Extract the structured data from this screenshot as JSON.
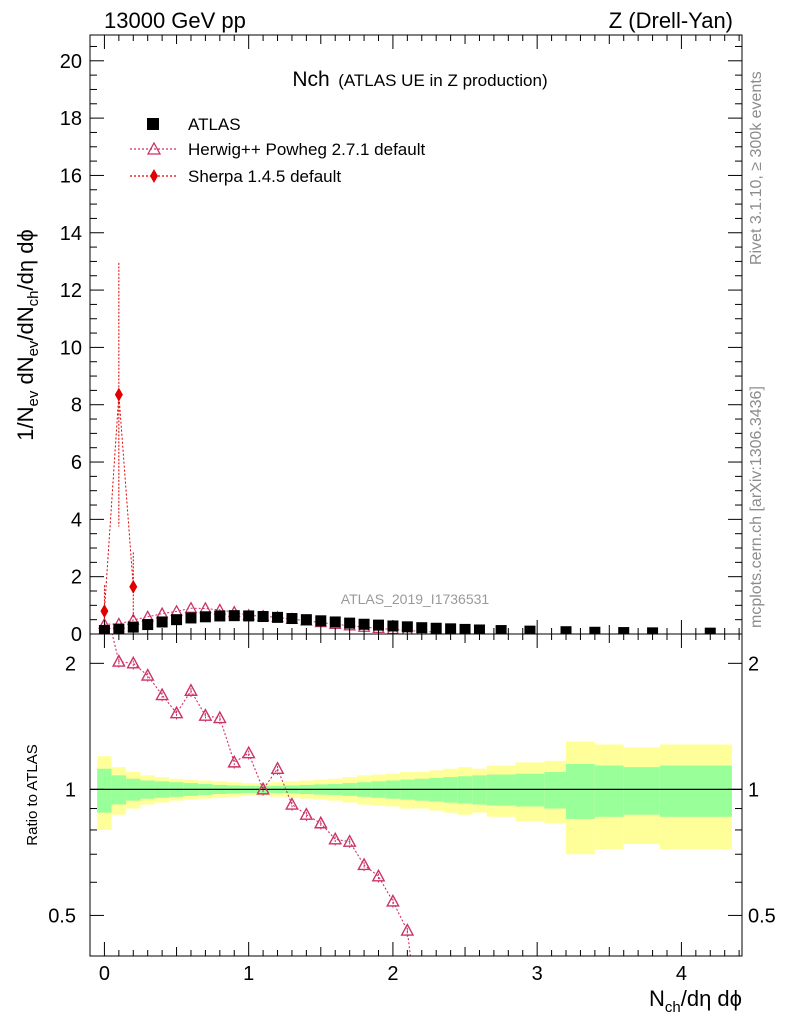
{
  "chart_data": {
    "type": "scatter",
    "header": {
      "energy": "13000 GeV pp",
      "process": "Z (Drell-Yan)"
    },
    "title": {
      "main": "Nch",
      "sub": "(ATLAS UE in Z production)"
    },
    "xlabel": {
      "base": "N",
      "sub": "ch",
      "rest": "/dη dϕ"
    },
    "ylabel": {
      "p1": "1/N",
      "s1": "ev",
      "p2": " dN",
      "s2": "ev",
      "p3": "/dN",
      "s3": "ch",
      "p4": "/dη dϕ"
    },
    "ratio_ylabel": "Ratio to ATLAS",
    "watermark": "ATLAS_2019_I1736531",
    "side_text_top": "Rivet 3.1.10, ≥ 300k events",
    "side_text_bottom": "mcplots.cern.ch [arXiv:1306.3436]",
    "xlim": [
      -0.1,
      4.42
    ],
    "ylim_main": [
      0,
      20.9
    ],
    "ylim_ratio_log": [
      0.4,
      2.35
    ],
    "x_ticks": [
      0,
      1,
      2,
      3,
      4
    ],
    "x_tick_labels": [
      "0",
      "1",
      "2",
      "3",
      "4"
    ],
    "y_ticks_main": [
      0,
      2,
      4,
      6,
      8,
      10,
      12,
      14,
      16,
      18,
      20
    ],
    "y_tick_labels_main": [
      "0",
      "2",
      "4",
      "6",
      "8",
      "10",
      "12",
      "14",
      "16",
      "18",
      "20"
    ],
    "y_ticks_ratio": [
      0.5,
      1,
      2
    ],
    "y_tick_labels_ratio": [
      "0.5",
      "1",
      "2"
    ],
    "legend": [
      {
        "name": "ATLAS",
        "color": "#000000"
      },
      {
        "name": "Herwig++ Powheg 2.7.1 default",
        "color": "#cc3366"
      },
      {
        "name": "Sherpa 1.4.5 default",
        "color": "#e00000"
      }
    ],
    "series": [
      {
        "name": "ATLAS",
        "x": [
          0.0,
          0.1,
          0.2,
          0.3,
          0.4,
          0.5,
          0.6,
          0.7,
          0.8,
          0.9,
          1.0,
          1.1,
          1.2,
          1.3,
          1.4,
          1.5,
          1.6,
          1.7,
          1.8,
          1.9,
          2.0,
          2.1,
          2.2,
          2.3,
          2.4,
          2.5,
          2.6,
          2.75,
          2.95,
          3.2,
          3.4,
          3.6,
          3.8,
          4.2
        ],
        "y": [
          0.12,
          0.17,
          0.24,
          0.33,
          0.42,
          0.5,
          0.56,
          0.6,
          0.63,
          0.64,
          0.63,
          0.61,
          0.58,
          0.54,
          0.5,
          0.46,
          0.42,
          0.38,
          0.34,
          0.31,
          0.28,
          0.25,
          0.22,
          0.2,
          0.18,
          0.16,
          0.14,
          0.12,
          0.1,
          0.08,
          0.06,
          0.05,
          0.04,
          0.03
        ]
      },
      {
        "name": "Herwig++ Powheg 2.7.1 default",
        "x": [
          0.0,
          0.1,
          0.2,
          0.3,
          0.4,
          0.5,
          0.6,
          0.7,
          0.8,
          0.9,
          1.0,
          1.1,
          1.2,
          1.3,
          1.4,
          1.5,
          1.6,
          1.7,
          1.8,
          1.9,
          2.0,
          2.1,
          2.2,
          2.3
        ],
        "y": [
          0.34,
          0.35,
          0.49,
          0.6,
          0.71,
          0.79,
          0.9,
          0.89,
          0.84,
          0.76,
          0.65,
          0.62,
          0.58,
          0.52,
          0.46,
          0.4,
          0.34,
          0.29,
          0.24,
          0.2,
          0.16,
          0.12,
          0.09,
          0.07
        ]
      },
      {
        "name": "Sherpa 1.4.5 default",
        "x": [
          0.0,
          0.1,
          0.2
        ],
        "y": [
          0.8,
          8.35,
          1.65
        ],
        "yerr_hi": [
          0.9,
          4.6,
          1.2
        ],
        "yerr_lo": [
          0.6,
          4.6,
          1.1
        ]
      }
    ],
    "ratio": {
      "herwig_x": [
        0.0,
        0.1,
        0.2,
        0.3,
        0.4,
        0.5,
        0.6,
        0.7,
        0.8,
        0.9,
        1.0,
        1.1,
        1.2,
        1.3,
        1.4,
        1.5,
        1.6,
        1.7,
        1.8,
        1.9,
        2.0,
        2.1
      ],
      "herwig_y": [
        2.8,
        2.02,
        2.0,
        1.87,
        1.68,
        1.52,
        1.72,
        1.5,
        1.48,
        1.16,
        1.22,
        1.0,
        1.12,
        0.92,
        0.87,
        0.83,
        0.76,
        0.75,
        0.66,
        0.62,
        0.54,
        0.46
      ],
      "band_x_edges": [
        -0.05,
        0.05,
        0.15,
        0.25,
        0.35,
        0.45,
        0.55,
        0.65,
        0.75,
        0.85,
        0.95,
        1.05,
        1.15,
        1.25,
        1.35,
        1.45,
        1.55,
        1.65,
        1.75,
        1.85,
        1.95,
        2.05,
        2.15,
        2.25,
        2.35,
        2.45,
        2.55,
        2.65,
        2.85,
        3.05,
        3.2,
        3.4,
        3.6,
        3.85,
        4.35
      ],
      "band_inner_half": [
        0.12,
        0.08,
        0.06,
        0.05,
        0.045,
        0.04,
        0.035,
        0.03,
        0.025,
        0.022,
        0.02,
        0.02,
        0.02,
        0.022,
        0.025,
        0.028,
        0.03,
        0.035,
        0.04,
        0.045,
        0.05,
        0.055,
        0.06,
        0.065,
        0.07,
        0.075,
        0.08,
        0.085,
        0.09,
        0.1,
        0.15,
        0.14,
        0.13,
        0.14
      ],
      "band_outer_half": [
        0.2,
        0.13,
        0.1,
        0.08,
        0.07,
        0.06,
        0.055,
        0.05,
        0.045,
        0.04,
        0.035,
        0.035,
        0.04,
        0.045,
        0.05,
        0.055,
        0.06,
        0.07,
        0.08,
        0.085,
        0.09,
        0.1,
        0.1,
        0.11,
        0.12,
        0.13,
        0.12,
        0.14,
        0.16,
        0.17,
        0.3,
        0.28,
        0.26,
        0.28
      ]
    }
  }
}
